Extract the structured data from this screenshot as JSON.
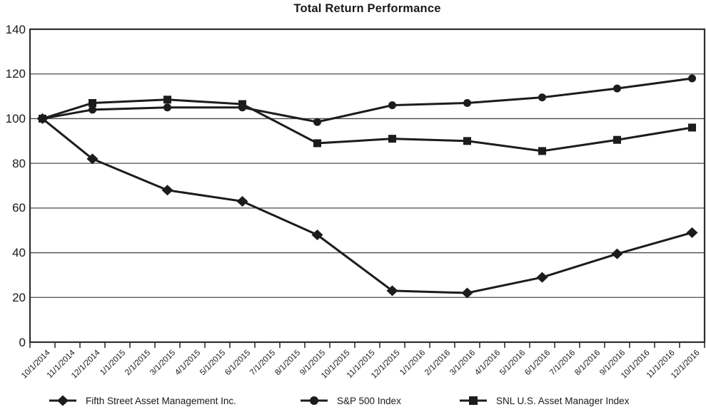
{
  "chart_data": {
    "type": "line",
    "title": "Total Return Performance",
    "xlabel": "",
    "ylabel": "",
    "ylim": [
      0,
      140
    ],
    "y_ticks": [
      0,
      20,
      40,
      60,
      80,
      100,
      120,
      140
    ],
    "grid": "horizontal",
    "legend_position": "bottom",
    "x_tick_labels": [
      "10/1/2014",
      "11/1/2014",
      "12/1/2014",
      "1/1/2015",
      "2/1/2015",
      "3/1/2015",
      "4/1/2015",
      "5/1/2015",
      "6/1/2015",
      "7/1/2015",
      "8/1/2015",
      "9/1/2015",
      "10/1/2015",
      "11/1/2015",
      "12/1/2015",
      "1/1/2016",
      "2/1/2016",
      "3/1/2016",
      "4/1/2016",
      "5/1/2016",
      "6/1/2016",
      "7/1/2016",
      "8/1/2016",
      "9/1/2016",
      "10/1/2016",
      "11/1/2016",
      "12/1/2016"
    ],
    "data_point_x_labels": [
      "10/1/2014",
      "12/1/2014",
      "3/1/2015",
      "6/1/2015",
      "9/1/2015",
      "12/1/2015",
      "3/1/2016",
      "6/1/2016",
      "9/1/2016",
      "12/1/2016"
    ],
    "data_point_tick_indices": [
      0,
      2,
      5,
      8,
      11,
      14,
      17,
      20,
      23,
      26
    ],
    "series": [
      {
        "name": "Fifth Street Asset Management Inc.",
        "marker": "diamond",
        "values": [
          100,
          82,
          68,
          63,
          48,
          23,
          22,
          29,
          39.5,
          49
        ]
      },
      {
        "name": "S&P 500 Index",
        "marker": "circle",
        "values": [
          100,
          104,
          105,
          105,
          98.5,
          106,
          107,
          109.5,
          113.5,
          118
        ]
      },
      {
        "name": "SNL U.S. Asset Manager Index",
        "marker": "square",
        "values": [
          100,
          107,
          108.5,
          106.5,
          89,
          91,
          90,
          85.5,
          90.5,
          96
        ]
      }
    ],
    "colors": {
      "series_line": "#1c1c1c",
      "marker_fill": "#1c1c1c",
      "gridline": "#4a4a4a",
      "plot_border": "#2e2e2e",
      "text": "#1a1a1a",
      "background": "#ffffff"
    }
  }
}
